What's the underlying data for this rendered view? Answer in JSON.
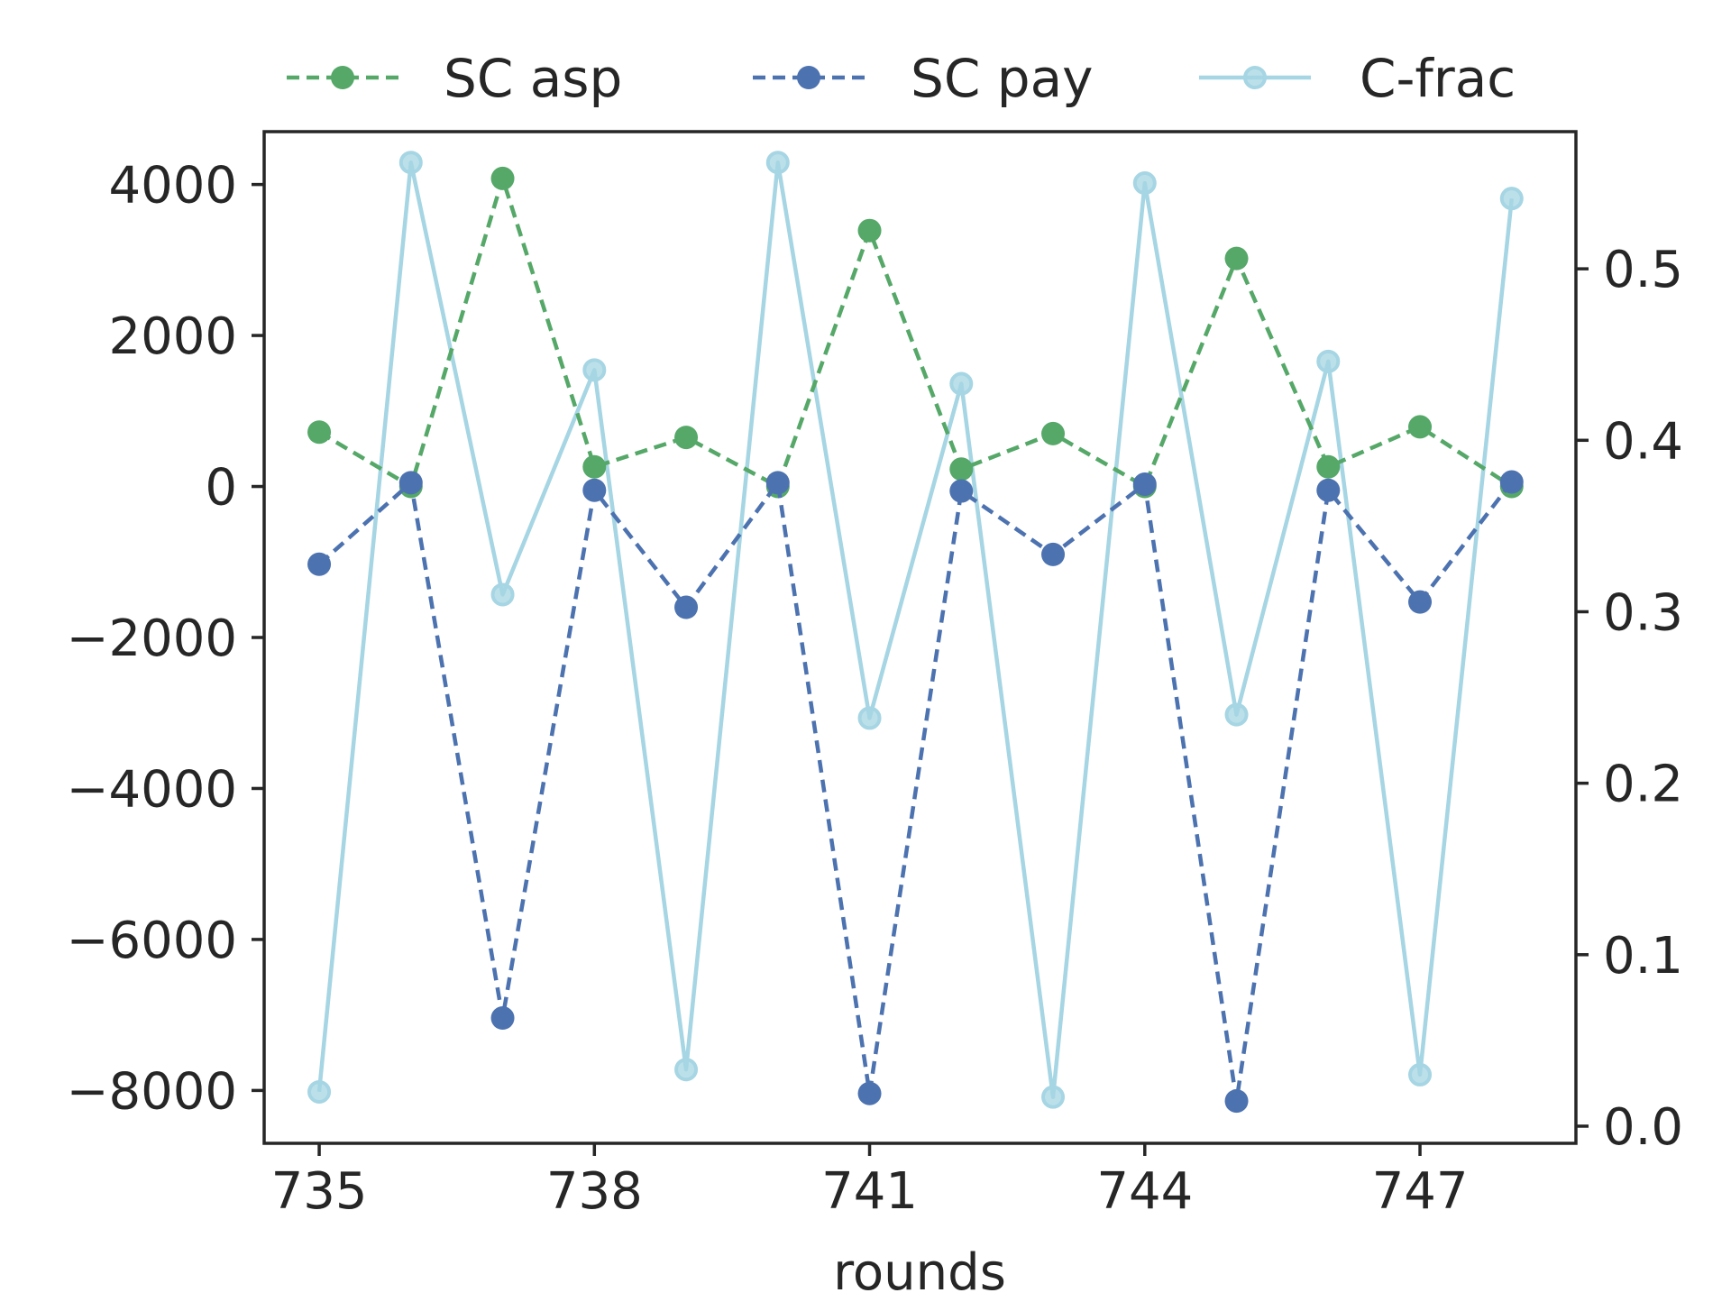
{
  "chart_data": {
    "type": "line",
    "title": "",
    "xlabel": "rounds",
    "ylabel": "",
    "y2label": "",
    "x": [
      735,
      736,
      737,
      738,
      739,
      740,
      741,
      742,
      743,
      744,
      745,
      746,
      747,
      748
    ],
    "xlim": [
      734.4,
      748.7
    ],
    "ylim": [
      -8700,
      4700
    ],
    "y2lim": [
      -0.01,
      0.58
    ],
    "xticks": [
      735,
      738,
      741,
      744,
      747
    ],
    "yticks": [
      4000,
      2000,
      0,
      -2000,
      -4000,
      -6000,
      -8000
    ],
    "ytick_labels": [
      "4000",
      "2000",
      "0",
      "−2000",
      "−4000",
      "−6000",
      "−8000"
    ],
    "y2ticks": [
      0.5,
      0.4,
      0.3,
      0.2,
      0.1,
      0.0
    ],
    "y2tick_labels": [
      "0.5",
      "0.4",
      "0.3",
      "0.2",
      "0.1",
      "0.0"
    ],
    "legend_position": "top-center",
    "series": [
      {
        "name": "SC asp",
        "axis": "left",
        "color": "#55a868",
        "style": "dashed",
        "values": [
          720,
          0,
          4080,
          260,
          650,
          0,
          3390,
          230,
          700,
          0,
          3020,
          260,
          790,
          0
        ]
      },
      {
        "name": "SC pay",
        "axis": "left",
        "color": "#4c72b0",
        "style": "dashed",
        "values": [
          -1030,
          50,
          -7040,
          -50,
          -1600,
          50,
          -8040,
          -60,
          -900,
          30,
          -8140,
          -50,
          -1530,
          60
        ]
      },
      {
        "name": "C-frac",
        "axis": "right",
        "color": "#a6d5e3",
        "style": "solid",
        "values": [
          0.02,
          0.562,
          0.31,
          0.441,
          0.033,
          0.562,
          0.238,
          0.433,
          0.017,
          0.55,
          0.24,
          0.446,
          0.03,
          0.541
        ]
      }
    ]
  }
}
